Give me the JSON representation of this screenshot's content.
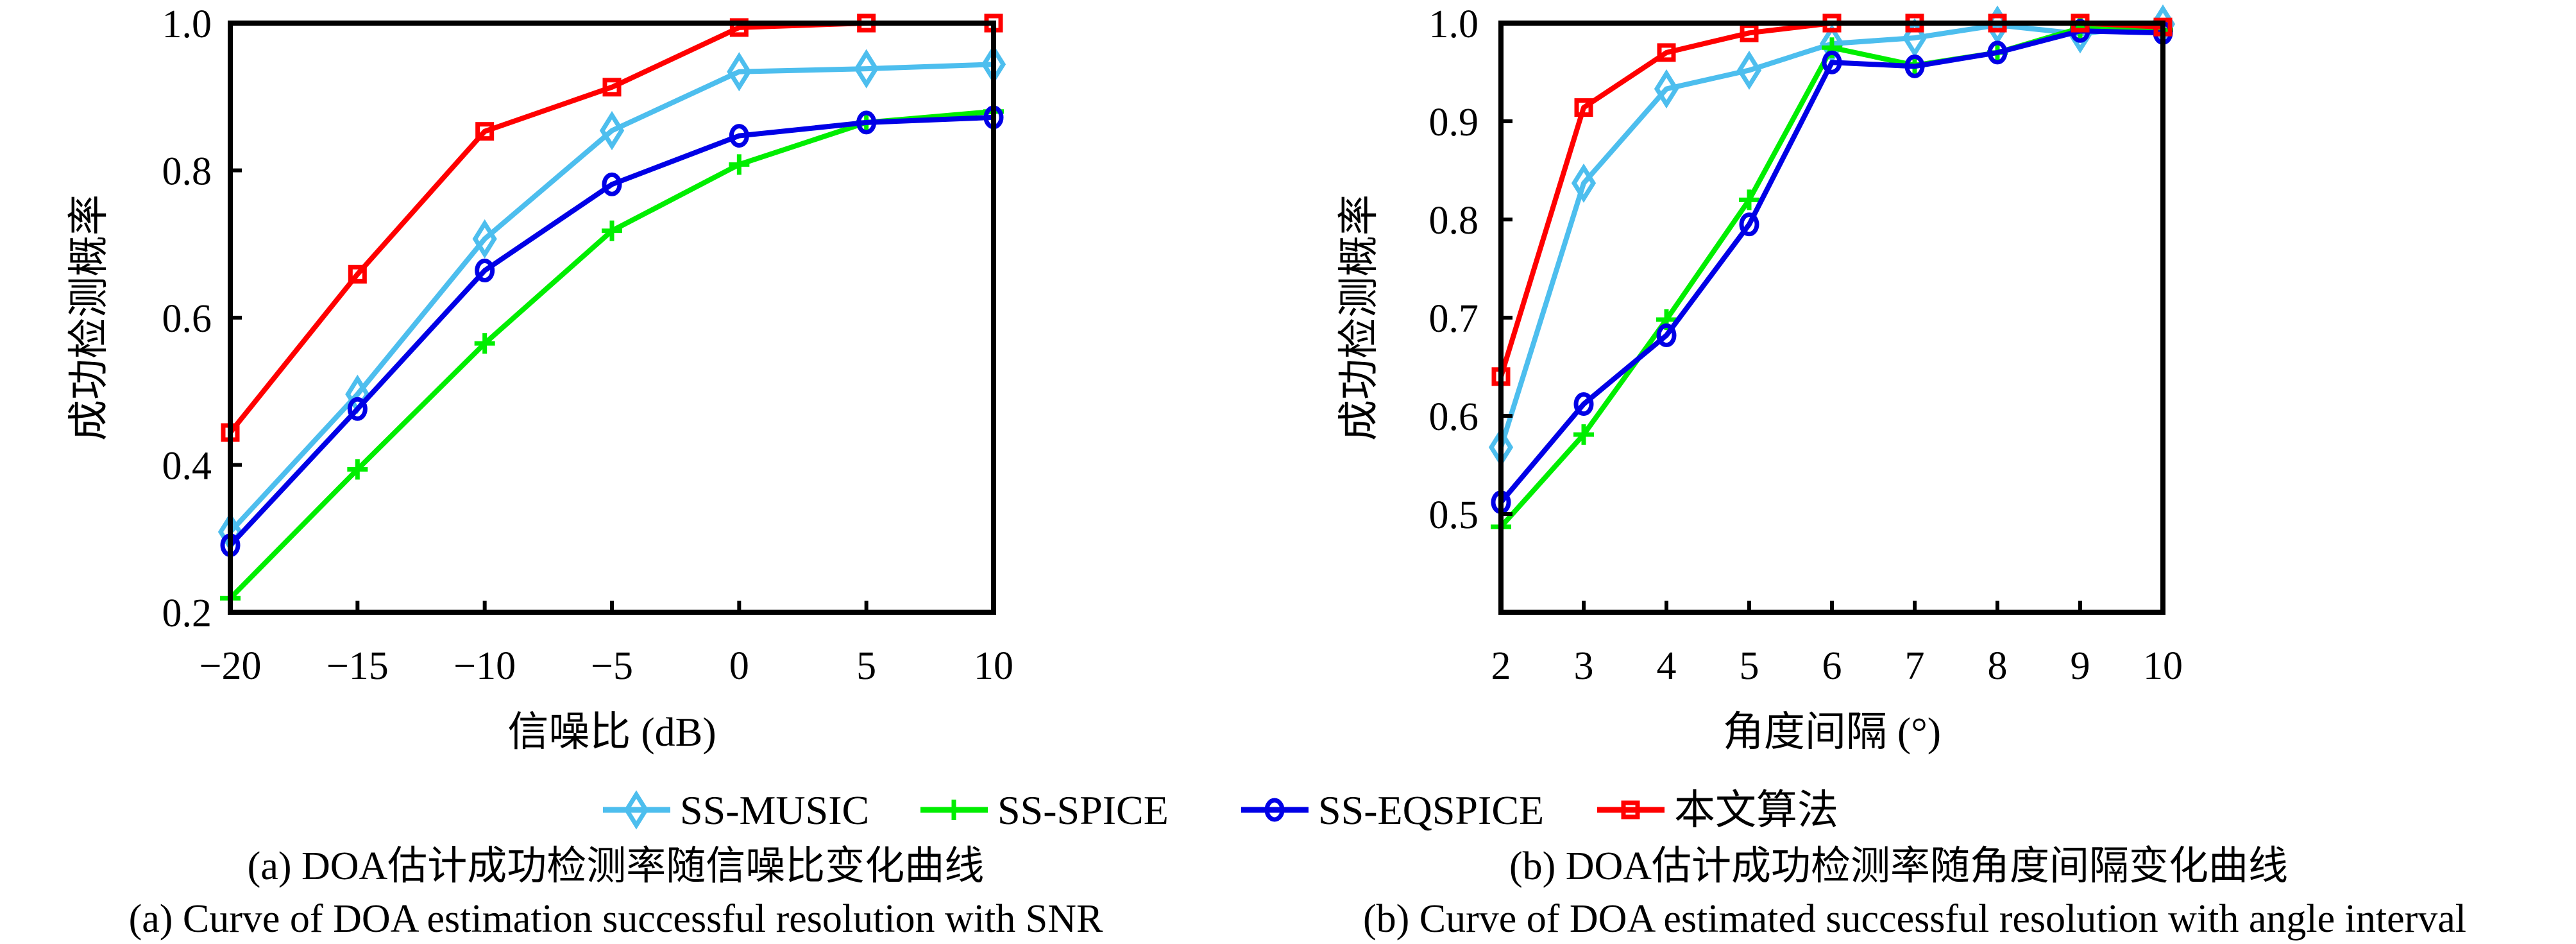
{
  "chart_data": [
    {
      "id": "a",
      "type": "line",
      "title": "",
      "xlabel": "信噪比 (dB)",
      "ylabel": "成功检测概率",
      "x": [
        -20,
        -15,
        -10,
        -5,
        0,
        5,
        10
      ],
      "xticks": [
        "−20",
        "−15",
        "−10",
        "−5",
        "0",
        "5",
        "10"
      ],
      "xlim": [
        -20,
        10
      ],
      "ylim": [
        0.2,
        1.0
      ],
      "yticks": [
        0.2,
        0.4,
        0.6,
        0.8,
        1.0
      ],
      "ytick_labels": [
        "0.2",
        "0.4",
        "0.6",
        "0.8",
        "1.0"
      ],
      "grid": false,
      "series": [
        {
          "name": "SS-MUSIC",
          "values": [
            0.309,
            0.496,
            0.707,
            0.854,
            0.934,
            0.938,
            0.944
          ]
        },
        {
          "name": "SS-SPICE",
          "values": [
            0.219,
            0.394,
            0.565,
            0.718,
            0.808,
            0.865,
            0.88
          ]
        },
        {
          "name": "SS-EQSPICE",
          "values": [
            0.291,
            0.476,
            0.664,
            0.781,
            0.847,
            0.865,
            0.872
          ]
        },
        {
          "name": "本文算法",
          "values": [
            0.444,
            0.659,
            0.853,
            0.913,
            0.994,
            1.0,
            1.0
          ]
        }
      ],
      "caption_cn": "(a) DOA估计成功检测率随信噪比变化曲线",
      "caption_en": "(a) Curve of DOA estimation successful resolution with SNR"
    },
    {
      "id": "b",
      "type": "line",
      "title": "",
      "xlabel": "角度间隔 (°)",
      "ylabel": "成功检测概率",
      "x": [
        2,
        3,
        4,
        5,
        6,
        7,
        8,
        9,
        10
      ],
      "xticks": [
        "2",
        "3",
        "4",
        "5",
        "6",
        "7",
        "8",
        "9",
        "10"
      ],
      "xlim": [
        2,
        10
      ],
      "ylim": [
        0.4,
        1.0
      ],
      "yticks": [
        0.5,
        0.6,
        0.7,
        0.8,
        0.9,
        1.0
      ],
      "ytick_labels": [
        "0.5",
        "0.6",
        "0.7",
        "0.8",
        "0.9",
        "1.0"
      ],
      "grid": false,
      "series": [
        {
          "name": "SS-MUSIC",
          "values": [
            0.568,
            0.837,
            0.933,
            0.952,
            0.979,
            0.985,
            0.998,
            0.989,
            0.999
          ]
        },
        {
          "name": "SS-SPICE",
          "values": [
            0.487,
            0.581,
            0.698,
            0.82,
            0.975,
            0.957,
            0.97,
            0.995,
            0.993
          ]
        },
        {
          "name": "SS-EQSPICE",
          "values": [
            0.512,
            0.612,
            0.682,
            0.795,
            0.96,
            0.956,
            0.97,
            0.992,
            0.99
          ]
        },
        {
          "name": "本文算法",
          "values": [
            0.64,
            0.914,
            0.97,
            0.99,
            1.0,
            1.0,
            1.0,
            1.0,
            0.996
          ]
        }
      ],
      "caption_cn": "(b) DOA估计成功检测率随角度间隔变化曲线",
      "caption_en": "(b) Curve of DOA estimated successful resolution with angle interval"
    }
  ],
  "legend": {
    "placement": "bottom-center",
    "entries": [
      {
        "name": "SS-MUSIC",
        "color": "#4DBEEE",
        "marker": "diamond"
      },
      {
        "name": "SS-SPICE",
        "color": "#00EE00",
        "marker": "plus"
      },
      {
        "name": "SS-EQSPICE",
        "color": "#0000E6",
        "marker": "circle"
      },
      {
        "name": "本文算法",
        "color": "#FF0000",
        "marker": "square"
      }
    ]
  }
}
